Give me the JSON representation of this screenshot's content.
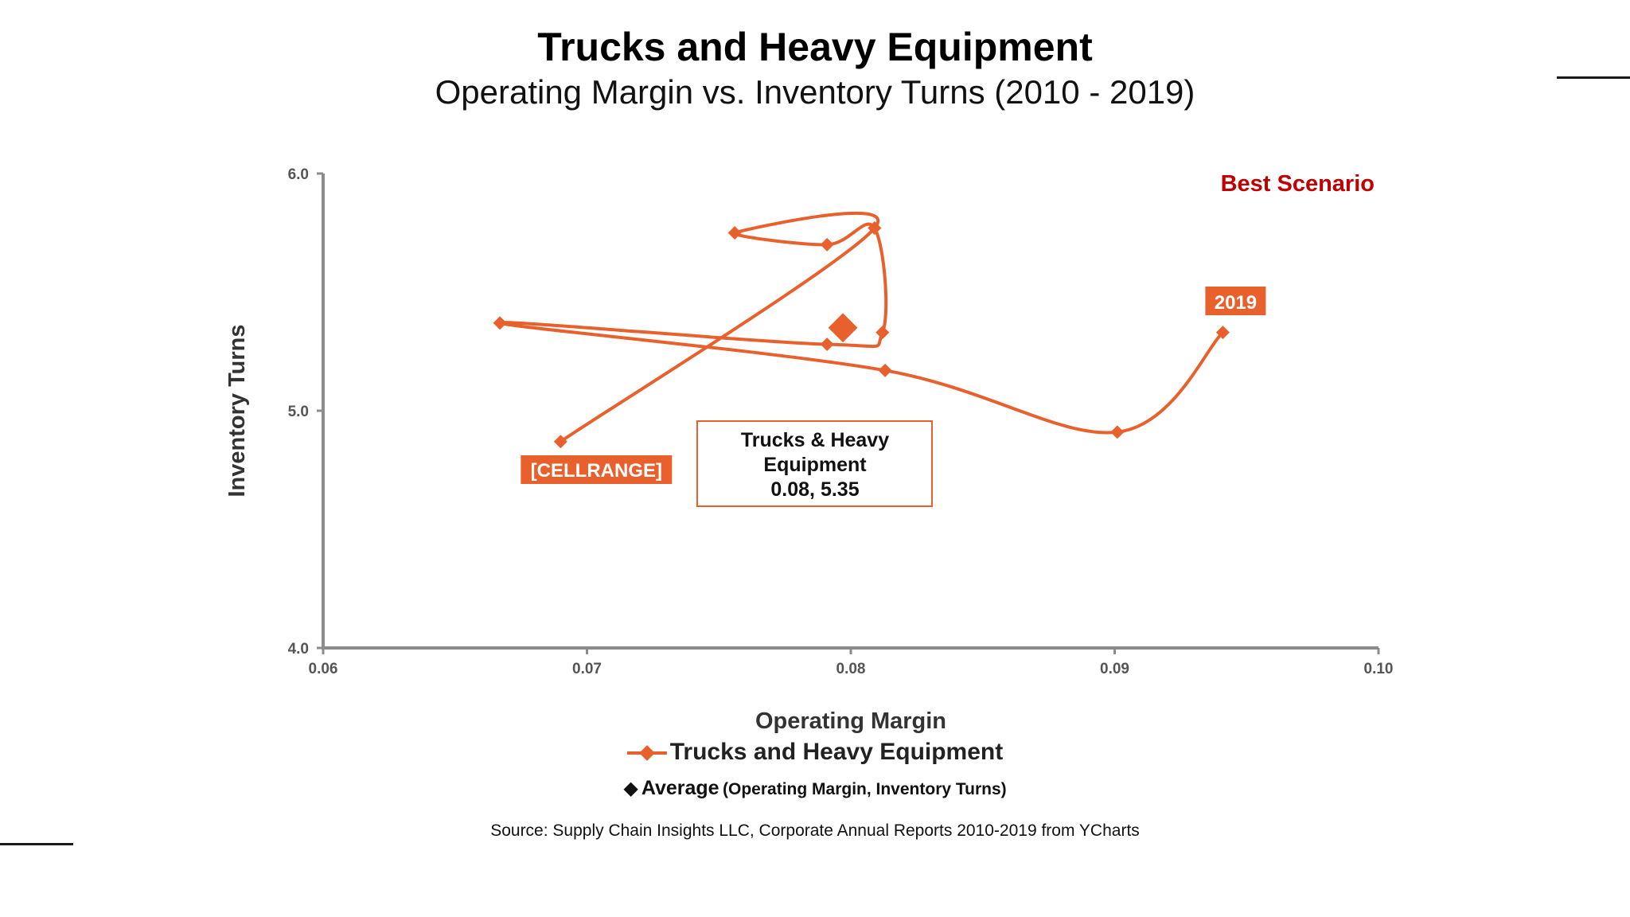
{
  "header": {
    "title": "Trucks and Heavy Equipment",
    "subtitle": "Operating Margin vs. Inventory Turns (2010 - 2019)"
  },
  "colors": {
    "series": "#e8602c",
    "best_scenario": "#c00000",
    "axis": "#8c8c8c",
    "text_dark": "#333333"
  },
  "chart_data": {
    "type": "scatter",
    "title": "Trucks and Heavy Equipment",
    "subtitle": "Operating Margin vs. Inventory Turns (2010 - 2019)",
    "xlabel": "Operating Margin",
    "ylabel": "Inventory Turns",
    "xlim": [
      0.06,
      0.1
    ],
    "ylim": [
      4.0,
      6.0
    ],
    "xticks": [
      "0.06",
      "0.07",
      "0.08",
      "0.09",
      "0.10"
    ],
    "yticks": [
      "4.0",
      "5.0",
      "6.0"
    ],
    "grid": false,
    "legend_position": "bottom",
    "series": [
      {
        "name": "Trucks and Heavy Equipment",
        "points": [
          {
            "x": 0.069,
            "y": 4.87
          },
          {
            "x": 0.0809,
            "y": 5.77
          },
          {
            "x": 0.0756,
            "y": 5.75
          },
          {
            "x": 0.0791,
            "y": 5.7
          },
          {
            "x": 0.0809,
            "y": 5.77
          },
          {
            "x": 0.0812,
            "y": 5.33
          },
          {
            "x": 0.0791,
            "y": 5.28
          },
          {
            "x": 0.0667,
            "y": 5.37
          },
          {
            "x": 0.0813,
            "y": 5.17
          },
          {
            "x": 0.0901,
            "y": 4.91
          },
          {
            "x": 0.0941,
            "y": 5.33
          }
        ]
      }
    ],
    "average": {
      "x": 0.0797,
      "y": 5.35
    },
    "annotations": {
      "start_label": "[CELLRANGE]",
      "end_label": "2019",
      "average_box": [
        "Trucks & Heavy",
        "Equipment",
        "0.08, 5.35"
      ],
      "best_scenario": "Best Scenario"
    }
  },
  "legend": {
    "series_label": "Trucks and Heavy Equipment",
    "average_label": "Average",
    "average_sublabel": "(Operating Margin, Inventory Turns)",
    "average_icon": "diamond-icon"
  },
  "footer": {
    "source": "Source:  Supply Chain Insights LLC, Corporate Annual Reports 2010-2019 from YCharts"
  }
}
